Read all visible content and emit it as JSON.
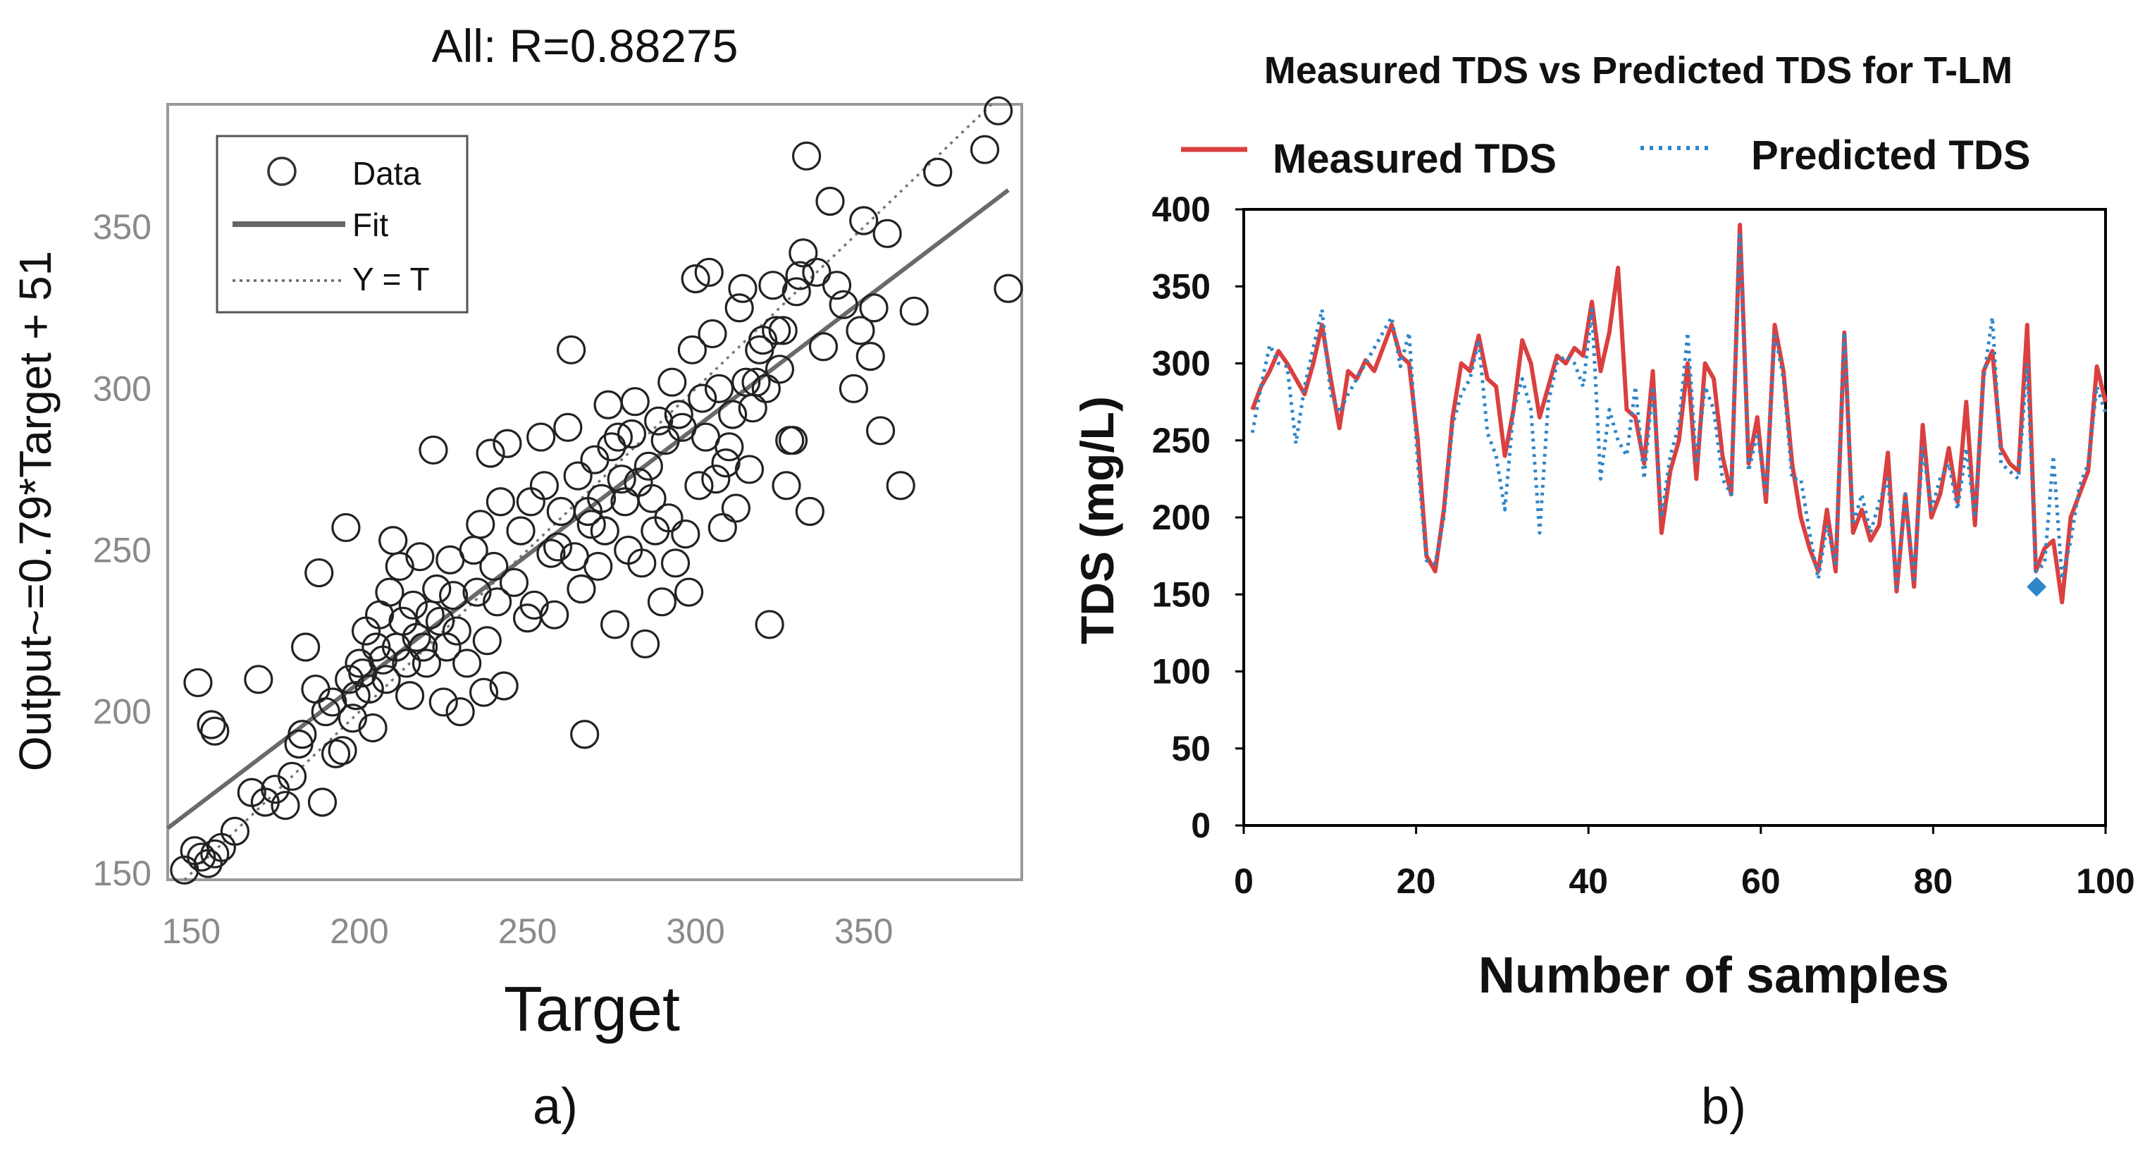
{
  "chart_data": [
    {
      "type": "scatter",
      "panel_label": "a)",
      "title": "All: R=0.88275",
      "xlabel": "Target",
      "ylabel": "Output~=0.79*Target + 51",
      "xlim": [
        143,
        397
      ],
      "ylim": [
        148,
        388
      ],
      "xticks": [
        "150",
        "200",
        "250",
        "300",
        "350"
      ],
      "yticks": [
        "150",
        "200",
        "250",
        "300",
        "350"
      ],
      "legend": {
        "position": "top-left",
        "entries": [
          "Data",
          "Fit",
          "Y = T"
        ]
      },
      "fit": {
        "slope": 0.79,
        "intercept": 51
      },
      "series": [
        {
          "name": "Data",
          "points": [
            [
              148,
              151
            ],
            [
              151,
              157
            ],
            [
              153,
              155
            ],
            [
              155,
              153
            ],
            [
              157,
              156
            ],
            [
              159,
              158
            ],
            [
              152,
              209
            ],
            [
              156,
              196
            ],
            [
              157,
              194
            ],
            [
              163,
              163
            ],
            [
              168,
              175
            ],
            [
              170,
              210
            ],
            [
              172,
              172
            ],
            [
              175,
              176
            ],
            [
              178,
              171
            ],
            [
              180,
              180
            ],
            [
              182,
              190
            ],
            [
              183,
              193
            ],
            [
              184,
              220
            ],
            [
              187,
              207
            ],
            [
              188,
              243
            ],
            [
              189,
              172
            ],
            [
              190,
              200
            ],
            [
              192,
              203
            ],
            [
              193,
              187
            ],
            [
              195,
              188
            ],
            [
              196,
              257
            ],
            [
              197,
              210
            ],
            [
              198,
              198
            ],
            [
              199,
              205
            ],
            [
              200,
              215
            ],
            [
              201,
              212
            ],
            [
              202,
              225
            ],
            [
              203,
              207
            ],
            [
              204,
              195
            ],
            [
              205,
              220
            ],
            [
              206,
              230
            ],
            [
              207,
              216
            ],
            [
              208,
              210
            ],
            [
              209,
              237
            ],
            [
              210,
              253
            ],
            [
              211,
              220
            ],
            [
              212,
              245
            ],
            [
              213,
              228
            ],
            [
              214,
              215
            ],
            [
              215,
              205
            ],
            [
              216,
              233
            ],
            [
              217,
              223
            ],
            [
              218,
              248
            ],
            [
              219,
              220
            ],
            [
              220,
              215
            ],
            [
              221,
              230
            ],
            [
              222,
              281
            ],
            [
              223,
              238
            ],
            [
              224,
              228
            ],
            [
              225,
              203
            ],
            [
              226,
              220
            ],
            [
              227,
              247
            ],
            [
              228,
              236
            ],
            [
              229,
              225
            ],
            [
              230,
              200
            ],
            [
              232,
              215
            ],
            [
              234,
              250
            ],
            [
              235,
              237
            ],
            [
              236,
              258
            ],
            [
              237,
              206
            ],
            [
              238,
              222
            ],
            [
              239,
              280
            ],
            [
              240,
              245
            ],
            [
              241,
              234
            ],
            [
              242,
              265
            ],
            [
              243,
              208
            ],
            [
              244,
              283
            ],
            [
              246,
              240
            ],
            [
              248,
              256
            ],
            [
              250,
              229
            ],
            [
              251,
              265
            ],
            [
              252,
              233
            ],
            [
              254,
              285
            ],
            [
              255,
              270
            ],
            [
              257,
              249
            ],
            [
              258,
              230
            ],
            [
              259,
              251
            ],
            [
              260,
              262
            ],
            [
              262,
              288
            ],
            [
              263,
              312
            ],
            [
              264,
              248
            ],
            [
              265,
              273
            ],
            [
              266,
              238
            ],
            [
              267,
              193
            ],
            [
              268,
              262
            ],
            [
              269,
              258
            ],
            [
              270,
              278
            ],
            [
              271,
              245
            ],
            [
              272,
              266
            ],
            [
              273,
              256
            ],
            [
              274,
              295
            ],
            [
              275,
              282
            ],
            [
              276,
              227
            ],
            [
              277,
              285
            ],
            [
              278,
              272
            ],
            [
              279,
              265
            ],
            [
              280,
              250
            ],
            [
              281,
              286
            ],
            [
              282,
              296
            ],
            [
              283,
              271
            ],
            [
              284,
              246
            ],
            [
              285,
              221
            ],
            [
              286,
              276
            ],
            [
              287,
              266
            ],
            [
              288,
              256
            ],
            [
              289,
              290
            ],
            [
              290,
              234
            ],
            [
              291,
              284
            ],
            [
              292,
              260
            ],
            [
              293,
              302
            ],
            [
              294,
              246
            ],
            [
              295,
              292
            ],
            [
              296,
              288
            ],
            [
              297,
              255
            ],
            [
              298,
              237
            ],
            [
              299,
              312
            ],
            [
              300,
              334
            ],
            [
              301,
              270
            ],
            [
              302,
              297
            ],
            [
              303,
              285
            ],
            [
              304,
              336
            ],
            [
              305,
              317
            ],
            [
              306,
              272
            ],
            [
              307,
              300
            ],
            [
              308,
              257
            ],
            [
              309,
              277
            ],
            [
              310,
              282
            ],
            [
              311,
              292
            ],
            [
              312,
              263
            ],
            [
              313,
              325
            ],
            [
              314,
              331
            ],
            [
              315,
              302
            ],
            [
              316,
              275
            ],
            [
              317,
              294
            ],
            [
              318,
              302
            ],
            [
              319,
              312
            ],
            [
              320,
              315
            ],
            [
              321,
              300
            ],
            [
              322,
              227
            ],
            [
              323,
              332
            ],
            [
              324,
              318
            ],
            [
              325,
              306
            ],
            [
              326,
              318
            ],
            [
              327,
              270
            ],
            [
              328,
              284
            ],
            [
              329,
              284
            ],
            [
              330,
              330
            ],
            [
              331,
              335
            ],
            [
              332,
              342
            ],
            [
              333,
              372
            ],
            [
              334,
              262
            ],
            [
              336,
              336
            ],
            [
              338,
              313
            ],
            [
              340,
              358
            ],
            [
              342,
              332
            ],
            [
              344,
              326
            ],
            [
              347,
              300
            ],
            [
              349,
              318
            ],
            [
              350,
              352
            ],
            [
              352,
              310
            ],
            [
              353,
              325
            ],
            [
              355,
              287
            ],
            [
              357,
              348
            ],
            [
              361,
              270
            ],
            [
              365,
              324
            ],
            [
              372,
              367
            ],
            [
              386,
              374
            ],
            [
              390,
              386
            ],
            [
              393,
              331
            ]
          ]
        }
      ]
    },
    {
      "type": "line",
      "panel_label": "b)",
      "title": "Measured TDS vs Predicted TDS for T-LM",
      "xlabel": "Number of samples",
      "ylabel": "TDS  (mg/L)",
      "xlim": [
        0,
        100
      ],
      "ylim": [
        0,
        400
      ],
      "xticks": [
        "0",
        "20",
        "40",
        "60",
        "80",
        "100"
      ],
      "yticks": [
        "0",
        "50",
        "100",
        "150",
        "200",
        "250",
        "300",
        "350",
        "400"
      ],
      "legend": {
        "position": "top",
        "entries": [
          "Measured TDS",
          "Predicted TDS"
        ]
      },
      "marker": {
        "x": 92,
        "y": 155,
        "color": "#2f86c8"
      },
      "series": [
        {
          "name": "Measured TDS",
          "color": "#d9403f",
          "values": [
            270,
            285,
            295,
            308,
            300,
            290,
            280,
            300,
            325,
            290,
            258,
            295,
            290,
            302,
            295,
            310,
            325,
            305,
            300,
            250,
            175,
            165,
            205,
            265,
            300,
            295,
            318,
            290,
            285,
            240,
            270,
            315,
            300,
            265,
            285,
            305,
            300,
            310,
            305,
            340,
            295,
            320,
            362,
            270,
            265,
            235,
            295,
            190,
            230,
            250,
            300,
            225,
            300,
            290,
            240,
            215,
            390,
            235,
            265,
            210,
            325,
            295,
            235,
            200,
            180,
            165,
            205,
            165,
            320,
            190,
            205,
            185,
            195,
            242,
            152,
            215,
            155,
            260,
            200,
            215,
            245,
            210,
            275,
            195,
            295,
            308,
            245,
            235,
            230,
            325,
            165,
            180,
            185,
            145,
            200,
            215,
            230,
            298,
            275
          ]
        },
        {
          "name": "Predicted TDS",
          "color": "#2f86c8",
          "values": [
            255,
            285,
            312,
            300,
            298,
            248,
            285,
            310,
            335,
            280,
            268,
            280,
            290,
            300,
            310,
            320,
            330,
            298,
            320,
            235,
            172,
            170,
            200,
            260,
            280,
            290,
            315,
            255,
            240,
            205,
            270,
            290,
            270,
            190,
            275,
            300,
            305,
            300,
            285,
            335,
            225,
            270,
            250,
            240,
            285,
            225,
            285,
            200,
            240,
            260,
            320,
            235,
            285,
            270,
            225,
            215,
            385,
            230,
            255,
            215,
            320,
            290,
            225,
            225,
            190,
            160,
            195,
            170,
            320,
            195,
            215,
            190,
            210,
            225,
            155,
            215,
            160,
            245,
            205,
            225,
            235,
            205,
            245,
            200,
            290,
            330,
            235,
            230,
            225,
            300,
            165,
            170,
            240,
            160,
            185,
            220,
            235,
            285,
            268
          ]
        }
      ]
    }
  ],
  "captions": {
    "left": "a)",
    "right": "b)"
  }
}
